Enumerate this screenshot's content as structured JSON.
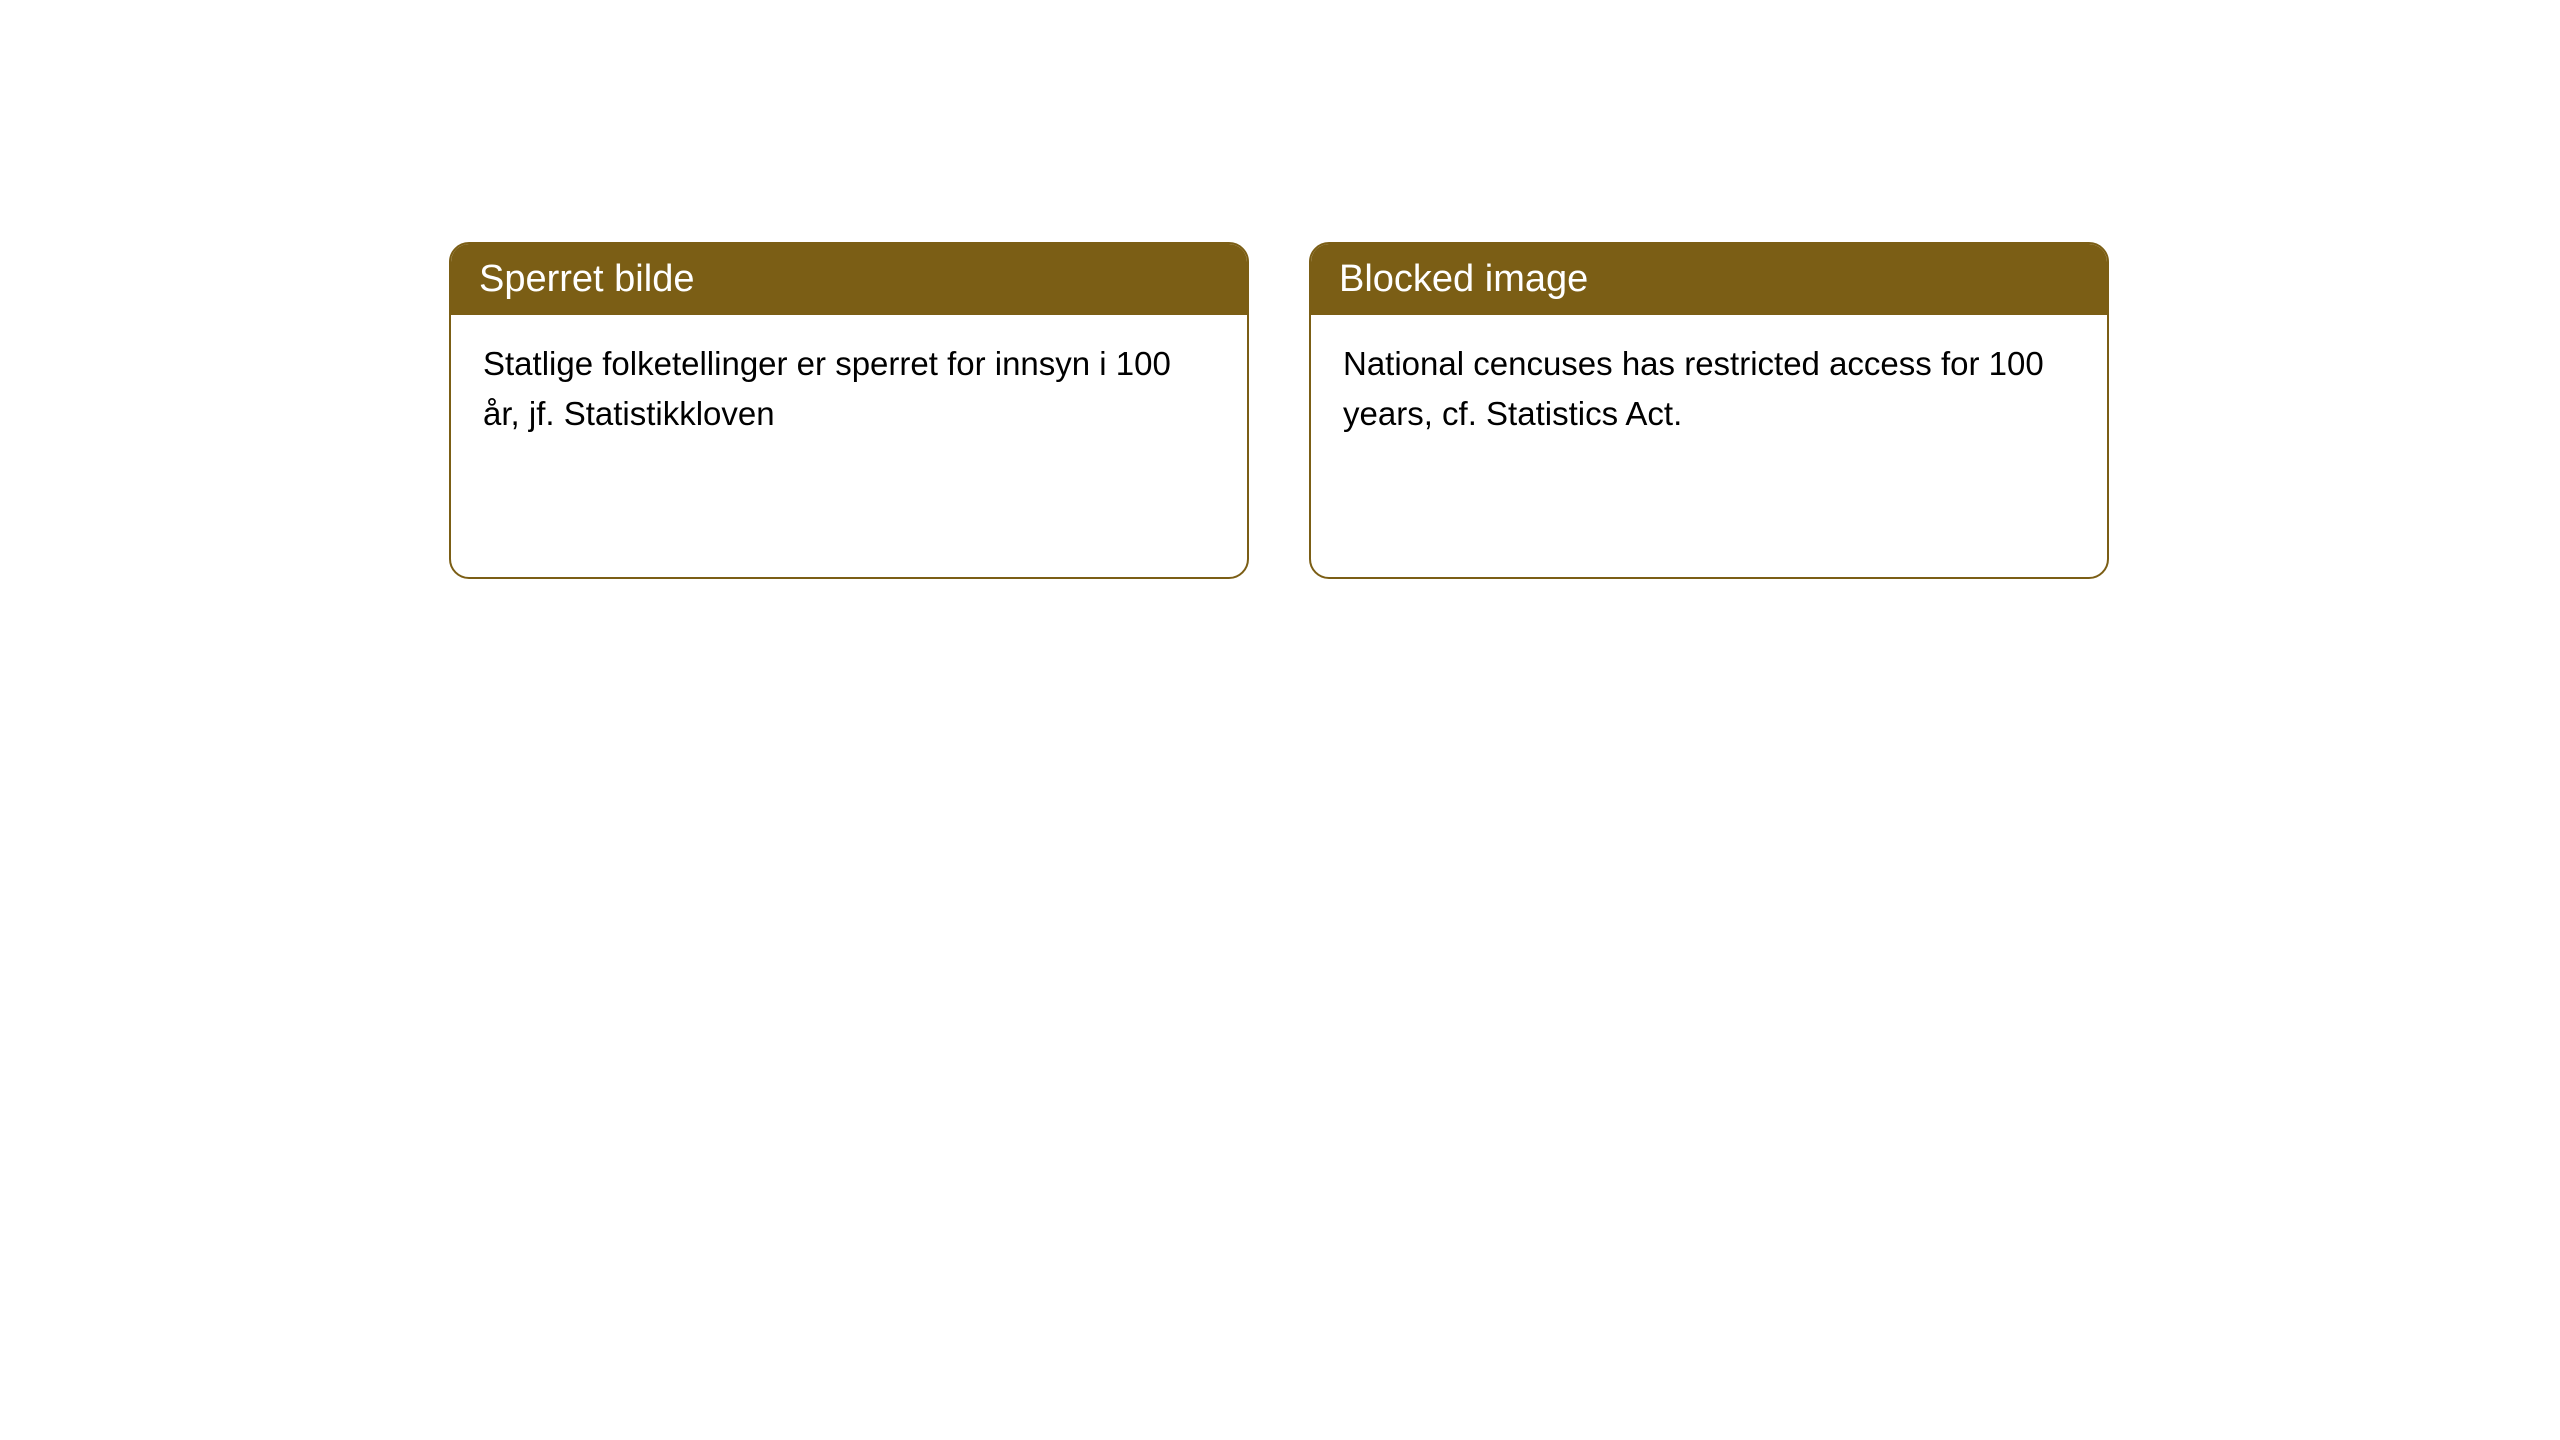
{
  "cards": [
    {
      "title": "Sperret bilde",
      "body": "Statlige folketellinger er sperret for innsyn i 100 år, jf. Statistikkloven"
    },
    {
      "title": "Blocked image",
      "body": "National cencuses has restricted access for 100 years, cf. Statistics Act."
    }
  ],
  "style": {
    "header_bg_color": "#7b5e15",
    "header_text_color": "#ffffff",
    "border_color": "#7b5e15",
    "card_bg_color": "#ffffff",
    "body_text_color": "#000000",
    "border_radius": 20,
    "header_fontsize": 38,
    "body_fontsize": 33
  }
}
